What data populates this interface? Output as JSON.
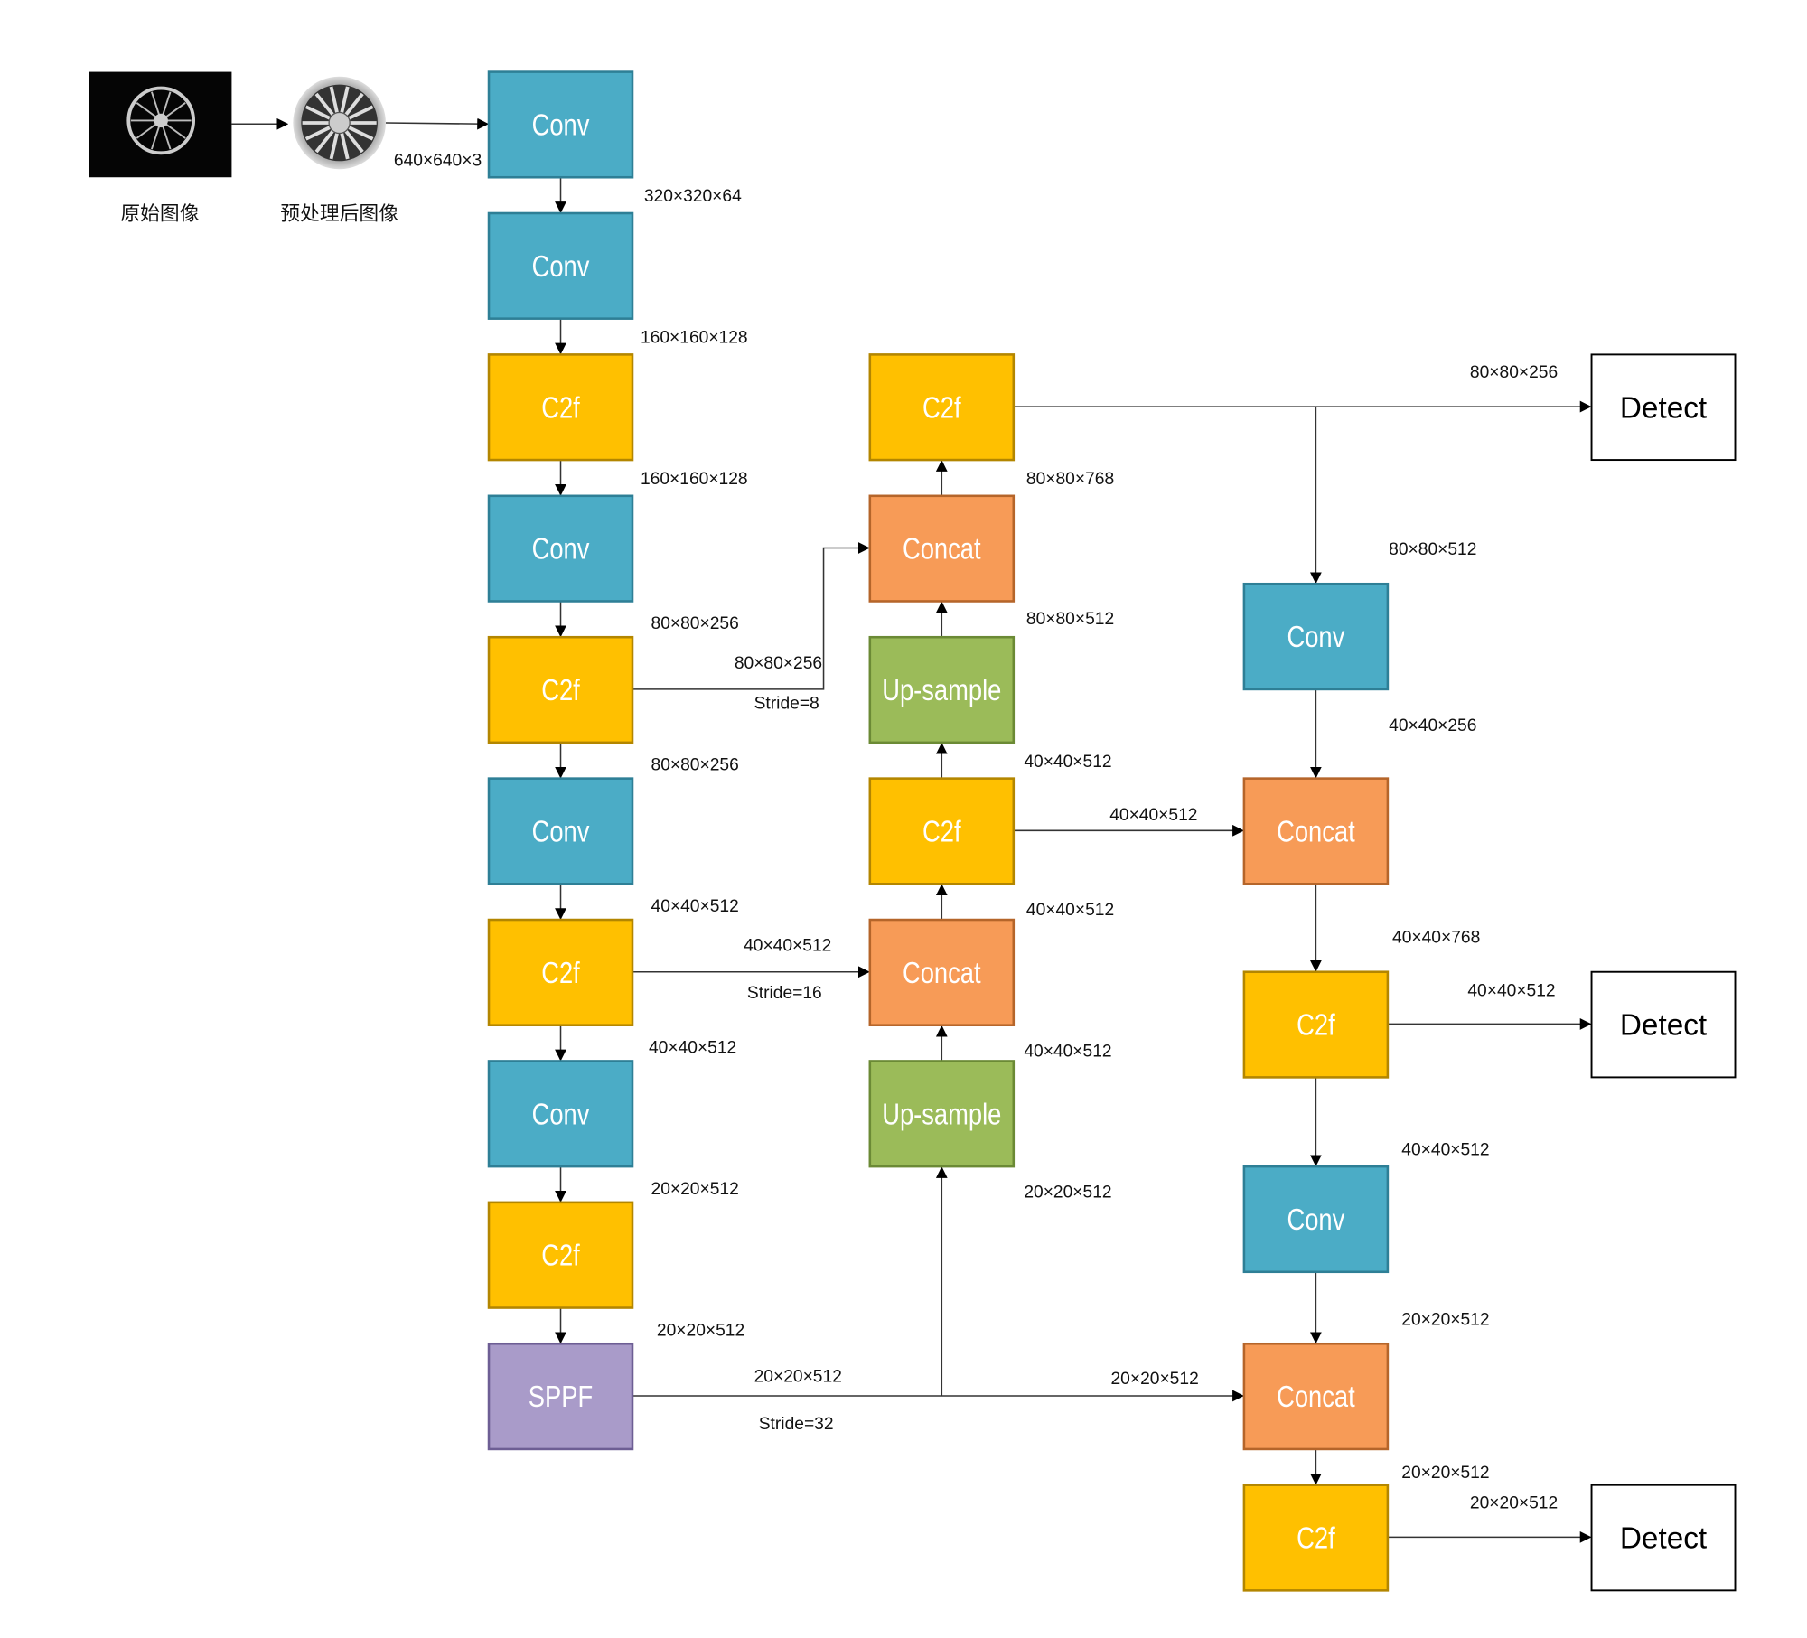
{
  "colors": {
    "conv": "#4BACC6",
    "c2f": "#FFC000",
    "concat": "#F79B57",
    "upsample": "#9BBB59",
    "sppf": "#A99BC9",
    "detect": "#FFFFFF"
  },
  "inputs": {
    "original_caption": "原始图像",
    "preprocessed_caption": "预处理后图像"
  },
  "blocks": [
    {
      "id": "b1",
      "type": "conv",
      "label": "Conv"
    },
    {
      "id": "b2",
      "type": "conv",
      "label": "Conv"
    },
    {
      "id": "b3",
      "type": "c2f",
      "label": "C2f"
    },
    {
      "id": "b4",
      "type": "conv",
      "label": "Conv"
    },
    {
      "id": "b5",
      "type": "c2f",
      "label": "C2f"
    },
    {
      "id": "b6",
      "type": "conv",
      "label": "Conv"
    },
    {
      "id": "b7",
      "type": "c2f",
      "label": "C2f"
    },
    {
      "id": "b8",
      "type": "conv",
      "label": "Conv"
    },
    {
      "id": "b9",
      "type": "c2f",
      "label": "C2f"
    },
    {
      "id": "b10",
      "type": "sppf",
      "label": "SPPF"
    },
    {
      "id": "n1",
      "type": "c2f",
      "label": "C2f"
    },
    {
      "id": "n2",
      "type": "concat",
      "label": "Concat"
    },
    {
      "id": "n3",
      "type": "upsample",
      "label": "Up-sample"
    },
    {
      "id": "n4",
      "type": "c2f",
      "label": "C2f"
    },
    {
      "id": "n5",
      "type": "concat",
      "label": "Concat"
    },
    {
      "id": "n6",
      "type": "upsample",
      "label": "Up-sample"
    },
    {
      "id": "h1",
      "type": "conv",
      "label": "Conv"
    },
    {
      "id": "h2",
      "type": "concat",
      "label": "Concat"
    },
    {
      "id": "h3",
      "type": "c2f",
      "label": "C2f"
    },
    {
      "id": "h4",
      "type": "conv",
      "label": "Conv"
    },
    {
      "id": "h5",
      "type": "concat",
      "label": "Concat"
    },
    {
      "id": "h6",
      "type": "c2f",
      "label": "C2f"
    },
    {
      "id": "d1",
      "type": "detect",
      "label": "Detect"
    },
    {
      "id": "d2",
      "type": "detect",
      "label": "Detect"
    },
    {
      "id": "d3",
      "type": "detect",
      "label": "Detect"
    }
  ],
  "labels": [
    "640×640×3",
    "320×320×64",
    "160×160×128",
    "160×160×128",
    "80×80×256",
    "80×80×256",
    "Stride=8",
    "80×80×256",
    "40×40×512",
    "40×40×512",
    "Stride=16",
    "40×40×512",
    "20×20×512",
    "20×20×512",
    "20×20×512",
    "Stride=32",
    "80×80×768",
    "80×80×512",
    "40×40×512",
    "40×40×512",
    "40×40×512",
    "40×40×512",
    "20×20×512",
    "20×20×512",
    "80×80×256",
    "80×80×512",
    "40×40×256",
    "40×40×768",
    "40×40×512",
    "40×40×512",
    "20×20×512",
    "20×20×512",
    "20×20×512"
  ]
}
